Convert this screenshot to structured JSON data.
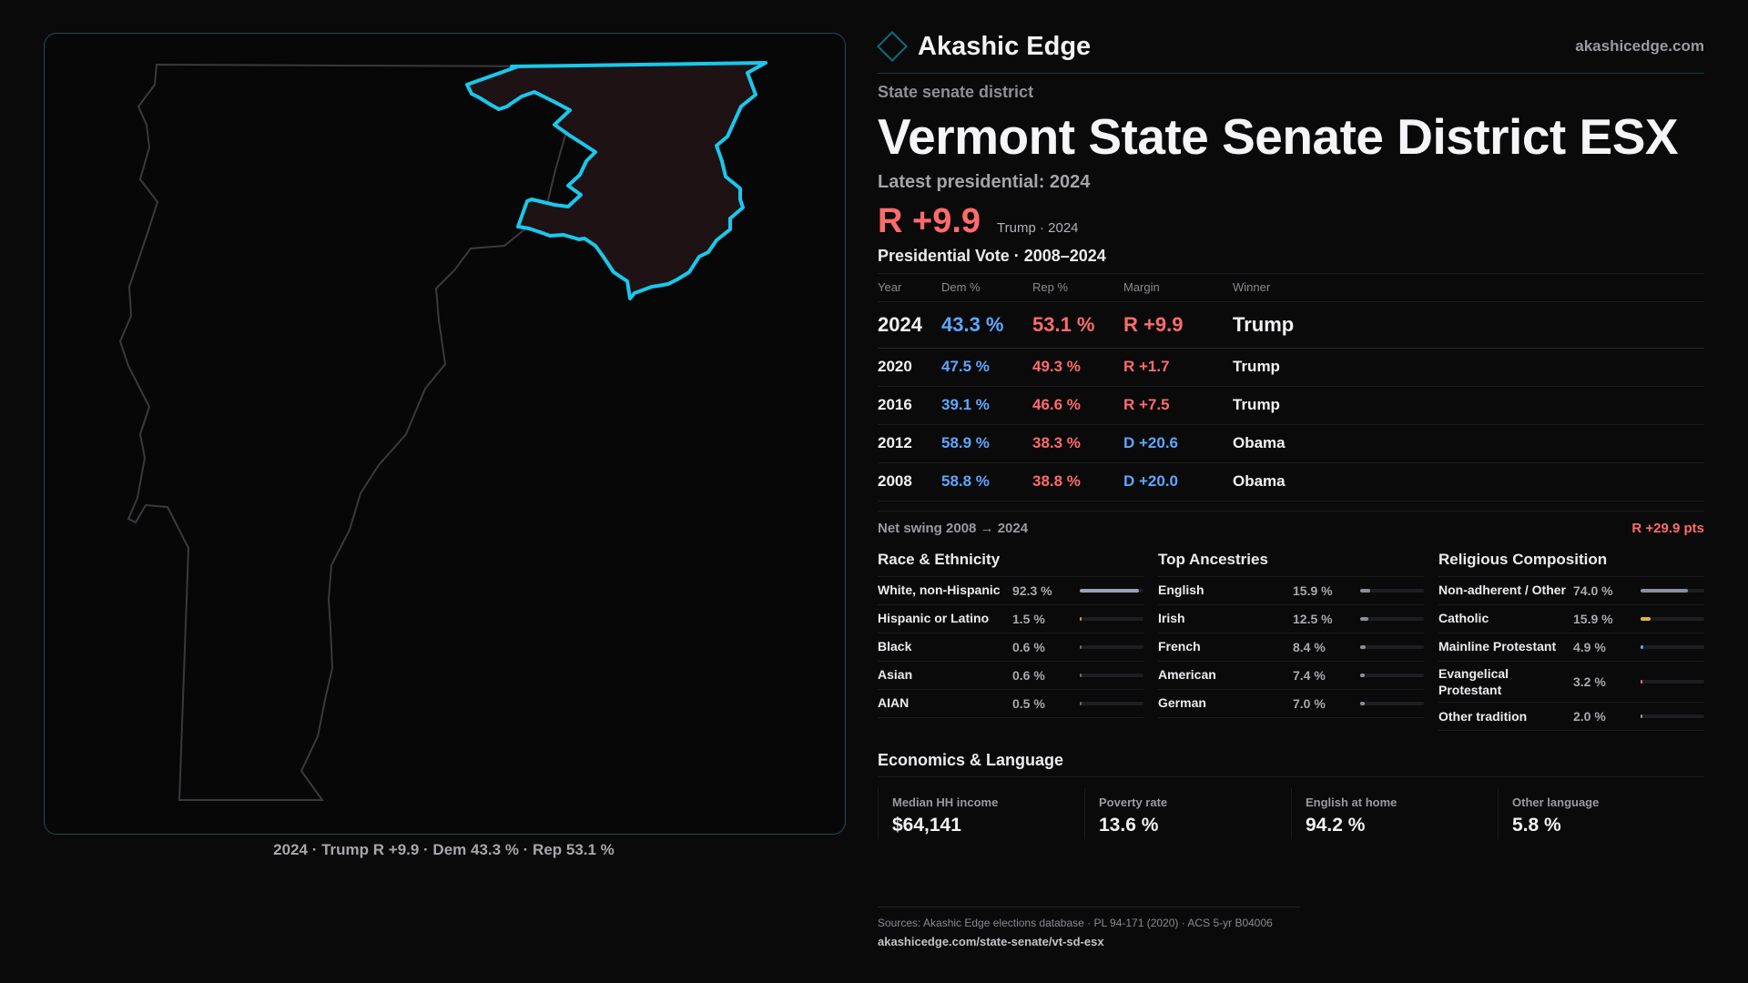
{
  "map": {
    "caption": "2024 · Trump R +9.9 · Dem 43.3 % · Rep 53.1 %",
    "state_outline_color": "#3a3a3e",
    "district_outline_color": "#19c8ec",
    "district_fill": "#1f1214"
  },
  "brand": {
    "name": "Akashic Edge",
    "url": "akashicedge.com",
    "logo_icon": "diamond-icon"
  },
  "district": {
    "kicker": "State senate district",
    "title": "Vermont State Senate District ESX",
    "latest_label": "Latest presidential: 2024",
    "headline_margin": "R +9.9",
    "headline_note": "Trump · 2024"
  },
  "presidential": {
    "title": "Presidential Vote · 2008–2024",
    "headers": {
      "year": "Year",
      "dem": "Dem %",
      "rep": "Rep %",
      "margin": "Margin",
      "winner": "Winner"
    },
    "rows": [
      {
        "year": "2024",
        "dem": "43.3 %",
        "rep": "53.1 %",
        "margin": "R +9.9",
        "margin_party": "rep",
        "winner": "Trump"
      },
      {
        "year": "2020",
        "dem": "47.5 %",
        "rep": "49.3 %",
        "margin": "R +1.7",
        "margin_party": "rep",
        "winner": "Trump"
      },
      {
        "year": "2016",
        "dem": "39.1 %",
        "rep": "46.6 %",
        "margin": "R +7.5",
        "margin_party": "rep",
        "winner": "Trump"
      },
      {
        "year": "2012",
        "dem": "58.9 %",
        "rep": "38.3 %",
        "margin": "D +20.6",
        "margin_party": "dem",
        "winner": "Obama"
      },
      {
        "year": "2008",
        "dem": "58.8 %",
        "rep": "38.8 %",
        "margin": "D +20.0",
        "margin_party": "dem",
        "winner": "Obama"
      }
    ],
    "swing_label": "Net swing 2008 → 2024",
    "swing_value": "R +29.9 pts"
  },
  "demographics": [
    {
      "title": "Race & Ethnicity",
      "rows": [
        {
          "label": "White, non-Hispanic",
          "value": "92.3 %",
          "fraction": 0.923,
          "color": "#9aa3b5"
        },
        {
          "label": "Hispanic or Latino",
          "value": "1.5 %",
          "fraction": 0.015,
          "color": "#c9a227"
        },
        {
          "label": "Black",
          "value": "0.6 %",
          "fraction": 0.006,
          "color": "#6a6a70"
        },
        {
          "label": "Asian",
          "value": "0.6 %",
          "fraction": 0.006,
          "color": "#6a6a70"
        },
        {
          "label": "AIAN",
          "value": "0.5 %",
          "fraction": 0.005,
          "color": "#6a6a70"
        }
      ]
    },
    {
      "title": "Top Ancestries",
      "rows": [
        {
          "label": "English",
          "value": "15.9 %",
          "fraction": 0.159,
          "color": "#8a8f9c"
        },
        {
          "label": "Irish",
          "value": "12.5 %",
          "fraction": 0.125,
          "color": "#8a8f9c"
        },
        {
          "label": "French",
          "value": "8.4 %",
          "fraction": 0.084,
          "color": "#8a8f9c"
        },
        {
          "label": "American",
          "value": "7.4 %",
          "fraction": 0.074,
          "color": "#8a8f9c"
        },
        {
          "label": "German",
          "value": "7.0 %",
          "fraction": 0.07,
          "color": "#8a8f9c"
        }
      ]
    },
    {
      "title": "Religious Composition",
      "rows": [
        {
          "label": "Non-adherent / Other",
          "value": "74.0 %",
          "fraction": 0.74,
          "color": "#8a8f9c"
        },
        {
          "label": "Catholic",
          "value": "15.9 %",
          "fraction": 0.159,
          "color": "#e0b43a"
        },
        {
          "label": "Mainline Protestant",
          "value": "4.9 %",
          "fraction": 0.049,
          "color": "#5ea6ff"
        },
        {
          "label": "Evangelical Protestant",
          "value": "3.2 %",
          "fraction": 0.032,
          "color": "#ff6b6b"
        },
        {
          "label": "Other tradition",
          "value": "2.0 %",
          "fraction": 0.02,
          "color": "#9a9aa0"
        }
      ]
    }
  ],
  "economics": {
    "title": "Economics & Language",
    "cells": [
      {
        "label": "Median HH income",
        "value": "$64,141"
      },
      {
        "label": "Poverty rate",
        "value": "13.6 %"
      },
      {
        "label": "English at home",
        "value": "94.2 %"
      },
      {
        "label": "Other language",
        "value": "5.8 %"
      }
    ]
  },
  "sources": {
    "text": "Sources: Akashic Edge elections database · PL 94-171 (2020) · ACS 5-yr B04006",
    "link": "akashicedge.com/state-senate/vt-sd-esx"
  }
}
